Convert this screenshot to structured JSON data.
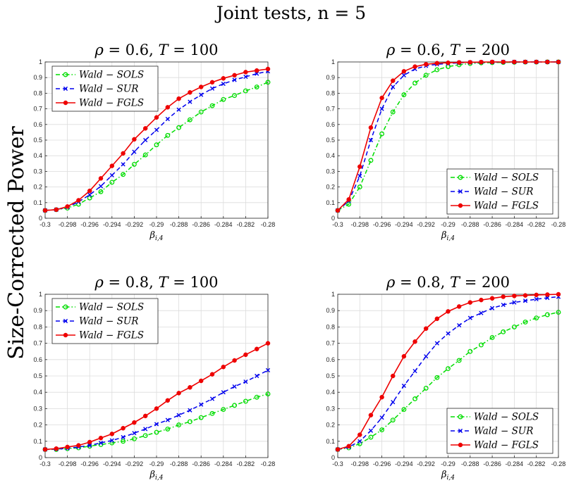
{
  "figure": {
    "title": "Joint tests, n = 5",
    "ylabel": "Size-Corrected Power"
  },
  "chart_data": [
    {
      "type": "line",
      "title": "ρ = 0.6, T = 100",
      "xlabel": "β_{i,4}",
      "ylabel": "",
      "xlim": [
        -0.3,
        -0.28
      ],
      "ylim": [
        0,
        1
      ],
      "grid": true,
      "legend_position": "top-left",
      "x": [
        -0.3,
        -0.299,
        -0.298,
        -0.297,
        -0.296,
        -0.295,
        -0.294,
        -0.293,
        -0.292,
        -0.291,
        -0.29,
        -0.289,
        -0.288,
        -0.287,
        -0.286,
        -0.285,
        -0.284,
        -0.283,
        -0.282,
        -0.281,
        -0.28
      ],
      "x_ticks": [
        "-0.3",
        "-0.298",
        "-0.296",
        "-0.294",
        "-0.292",
        "-0.29",
        "-0.288",
        "-0.286",
        "-0.284",
        "-0.282",
        "-0.28"
      ],
      "y_ticks": [
        "0",
        "0.1",
        "0.2",
        "0.3",
        "0.4",
        "0.5",
        "0.6",
        "0.7",
        "0.8",
        "0.9",
        "1"
      ],
      "series": [
        {
          "name": "Wald − SOLS",
          "color": "#00dd00",
          "dash": "dashdot",
          "marker": "circle",
          "values": [
            0.05,
            0.055,
            0.065,
            0.09,
            0.13,
            0.17,
            0.23,
            0.28,
            0.345,
            0.405,
            0.47,
            0.53,
            0.58,
            0.63,
            0.68,
            0.72,
            0.76,
            0.785,
            0.815,
            0.84,
            0.87
          ]
        },
        {
          "name": "Wald − SUR",
          "color": "#0000ee",
          "dash": "dashed",
          "marker": "x",
          "values": [
            0.05,
            0.055,
            0.07,
            0.105,
            0.15,
            0.205,
            0.275,
            0.345,
            0.425,
            0.5,
            0.565,
            0.635,
            0.695,
            0.745,
            0.79,
            0.83,
            0.86,
            0.885,
            0.905,
            0.925,
            0.94
          ]
        },
        {
          "name": "Wald − FGLS",
          "color": "#ee0000",
          "dash": "solid",
          "marker": "dot",
          "values": [
            0.05,
            0.055,
            0.075,
            0.115,
            0.175,
            0.255,
            0.335,
            0.415,
            0.505,
            0.575,
            0.645,
            0.71,
            0.765,
            0.805,
            0.84,
            0.87,
            0.895,
            0.915,
            0.935,
            0.945,
            0.955
          ]
        }
      ]
    },
    {
      "type": "line",
      "title": "ρ = 0.6, T = 200",
      "xlabel": "β_{i,4}",
      "ylabel": "",
      "xlim": [
        -0.3,
        -0.28
      ],
      "ylim": [
        0,
        1
      ],
      "grid": true,
      "legend_position": "bottom-right",
      "x": [
        -0.3,
        -0.299,
        -0.298,
        -0.297,
        -0.296,
        -0.295,
        -0.294,
        -0.293,
        -0.292,
        -0.291,
        -0.29,
        -0.289,
        -0.288,
        -0.287,
        -0.286,
        -0.285,
        -0.284,
        -0.283,
        -0.282,
        -0.281,
        -0.28
      ],
      "x_ticks": [
        "-0.3",
        "-0.298",
        "-0.296",
        "-0.294",
        "-0.292",
        "-0.29",
        "-0.288",
        "-0.286",
        "-0.284",
        "-0.282",
        "-0.28"
      ],
      "y_ticks": [
        "0",
        "0.1",
        "0.2",
        "0.3",
        "0.4",
        "0.5",
        "0.6",
        "0.7",
        "0.8",
        "0.9",
        "1"
      ],
      "series": [
        {
          "name": "Wald − SOLS",
          "color": "#00dd00",
          "dash": "dashdot",
          "marker": "circle",
          "values": [
            0.05,
            0.09,
            0.2,
            0.37,
            0.54,
            0.68,
            0.79,
            0.865,
            0.915,
            0.95,
            0.97,
            0.982,
            0.99,
            0.994,
            0.996,
            0.997,
            0.998,
            0.999,
            0.999,
            1.0,
            1.0
          ]
        },
        {
          "name": "Wald − SUR",
          "color": "#0000ee",
          "dash": "dashed",
          "marker": "x",
          "values": [
            0.05,
            0.11,
            0.27,
            0.5,
            0.7,
            0.84,
            0.915,
            0.955,
            0.975,
            0.985,
            0.99,
            0.995,
            0.997,
            0.998,
            0.999,
            1.0,
            1.0,
            1.0,
            1.0,
            1.0,
            1.0
          ]
        },
        {
          "name": "Wald − FGLS",
          "color": "#ee0000",
          "dash": "solid",
          "marker": "dot",
          "values": [
            0.05,
            0.12,
            0.33,
            0.58,
            0.77,
            0.88,
            0.94,
            0.97,
            0.985,
            0.992,
            0.995,
            0.997,
            0.998,
            0.999,
            1.0,
            1.0,
            1.0,
            1.0,
            1.0,
            1.0,
            1.0
          ]
        }
      ]
    },
    {
      "type": "line",
      "title": "ρ = 0.8, T = 100",
      "xlabel": "β_{i,4}",
      "ylabel": "",
      "xlim": [
        -0.3,
        -0.28
      ],
      "ylim": [
        0,
        1
      ],
      "grid": true,
      "legend_position": "top-left",
      "x": [
        -0.3,
        -0.299,
        -0.298,
        -0.297,
        -0.296,
        -0.295,
        -0.294,
        -0.293,
        -0.292,
        -0.291,
        -0.29,
        -0.289,
        -0.288,
        -0.287,
        -0.286,
        -0.285,
        -0.284,
        -0.283,
        -0.282,
        -0.281,
        -0.28
      ],
      "x_ticks": [
        "-0.3",
        "-0.298",
        "-0.296",
        "-0.294",
        "-0.292",
        "-0.29",
        "-0.288",
        "-0.286",
        "-0.284",
        "-0.282",
        "-0.28"
      ],
      "y_ticks": [
        "0",
        "0.1",
        "0.2",
        "0.3",
        "0.4",
        "0.5",
        "0.6",
        "0.7",
        "0.8",
        "0.9",
        "1"
      ],
      "series": [
        {
          "name": "Wald − SOLS",
          "color": "#00dd00",
          "dash": "dashdot",
          "marker": "circle",
          "values": [
            0.05,
            0.05,
            0.055,
            0.06,
            0.07,
            0.08,
            0.09,
            0.1,
            0.115,
            0.135,
            0.155,
            0.175,
            0.2,
            0.22,
            0.245,
            0.27,
            0.295,
            0.32,
            0.345,
            0.37,
            0.39
          ]
        },
        {
          "name": "Wald − SUR",
          "color": "#0000ee",
          "dash": "dashed",
          "marker": "x",
          "values": [
            0.05,
            0.052,
            0.057,
            0.065,
            0.075,
            0.09,
            0.105,
            0.125,
            0.15,
            0.175,
            0.205,
            0.23,
            0.26,
            0.29,
            0.325,
            0.36,
            0.4,
            0.435,
            0.465,
            0.5,
            0.535
          ]
        },
        {
          "name": "Wald − FGLS",
          "color": "#ee0000",
          "dash": "solid",
          "marker": "dot",
          "values": [
            0.05,
            0.055,
            0.065,
            0.075,
            0.095,
            0.12,
            0.145,
            0.18,
            0.215,
            0.255,
            0.3,
            0.35,
            0.395,
            0.43,
            0.47,
            0.51,
            0.555,
            0.595,
            0.63,
            0.665,
            0.7
          ]
        }
      ]
    },
    {
      "type": "line",
      "title": "ρ = 0.8, T = 200",
      "xlabel": "β_{i,4}",
      "ylabel": "",
      "xlim": [
        -0.3,
        -0.28
      ],
      "ylim": [
        0,
        1
      ],
      "grid": true,
      "legend_position": "bottom-right",
      "x": [
        -0.3,
        -0.299,
        -0.298,
        -0.297,
        -0.296,
        -0.295,
        -0.294,
        -0.293,
        -0.292,
        -0.291,
        -0.29,
        -0.289,
        -0.288,
        -0.287,
        -0.286,
        -0.285,
        -0.284,
        -0.283,
        -0.282,
        -0.281,
        -0.28
      ],
      "x_ticks": [
        "-0.3",
        "-0.298",
        "-0.296",
        "-0.294",
        "-0.292",
        "-0.29",
        "-0.288",
        "-0.286",
        "-0.284",
        "-0.282",
        "-0.28"
      ],
      "y_ticks": [
        "0",
        "0.1",
        "0.2",
        "0.3",
        "0.4",
        "0.5",
        "0.6",
        "0.7",
        "0.8",
        "0.9",
        "1"
      ],
      "series": [
        {
          "name": "Wald − SOLS",
          "color": "#00dd00",
          "dash": "dashdot",
          "marker": "circle",
          "values": [
            0.05,
            0.06,
            0.085,
            0.125,
            0.17,
            0.23,
            0.295,
            0.36,
            0.425,
            0.49,
            0.545,
            0.595,
            0.65,
            0.69,
            0.735,
            0.77,
            0.8,
            0.83,
            0.855,
            0.875,
            0.89
          ]
        },
        {
          "name": "Wald − SUR",
          "color": "#0000ee",
          "dash": "dashed",
          "marker": "x",
          "values": [
            0.05,
            0.065,
            0.1,
            0.165,
            0.245,
            0.34,
            0.44,
            0.53,
            0.62,
            0.7,
            0.76,
            0.81,
            0.855,
            0.885,
            0.915,
            0.935,
            0.95,
            0.96,
            0.97,
            0.978,
            0.985
          ]
        },
        {
          "name": "Wald − FGLS",
          "color": "#ee0000",
          "dash": "solid",
          "marker": "dot",
          "values": [
            0.05,
            0.07,
            0.14,
            0.26,
            0.37,
            0.5,
            0.62,
            0.71,
            0.79,
            0.85,
            0.895,
            0.925,
            0.95,
            0.965,
            0.975,
            0.985,
            0.99,
            0.993,
            0.996,
            0.998,
            1.0
          ]
        }
      ]
    }
  ]
}
